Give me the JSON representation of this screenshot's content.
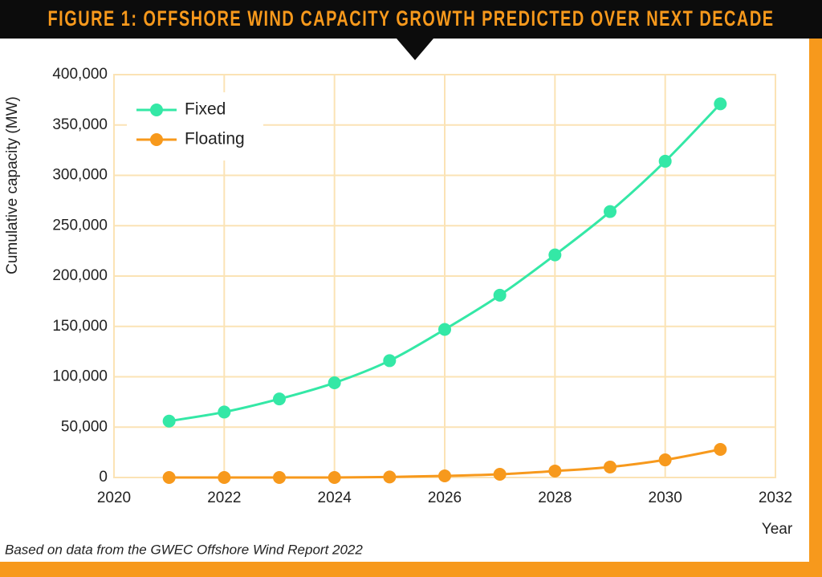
{
  "chart_data": {
    "type": "line",
    "title": "FIGURE 1: OFFSHORE WIND CAPACITY GROWTH PREDICTED OVER NEXT DECADE",
    "x_label": "Year",
    "y_label": "Cumulative capacity (MW)",
    "note": "Based on data from the GWEC Offshore Wind Report 2022",
    "x": [
      2021,
      2022,
      2023,
      2024,
      2025,
      2026,
      2027,
      2028,
      2029,
      2030,
      2031
    ],
    "series": [
      {
        "name": "Fixed",
        "color": "#34e8a6",
        "values": [
          56000,
          65000,
          78000,
          94000,
          116000,
          147000,
          181000,
          221000,
          264000,
          314000,
          371000
        ]
      },
      {
        "name": "Floating",
        "color": "#f7991c",
        "values": [
          0,
          0,
          0,
          0,
          500,
          1600,
          3200,
          6400,
          10400,
          17500,
          27900
        ]
      }
    ],
    "xlim": [
      2020,
      2032
    ],
    "xticks": [
      2020,
      2022,
      2024,
      2026,
      2028,
      2030,
      2032
    ],
    "ylim": [
      0,
      400000
    ],
    "yticks": [
      0,
      {
        "value": 50000,
        "label": "50,000"
      },
      {
        "value": 100000,
        "label": "100,000"
      },
      {
        "value": 150000,
        "label": "150,000"
      },
      {
        "value": 200000,
        "label": "200,000"
      },
      {
        "value": 250000,
        "label": "250,000"
      },
      {
        "value": 300000,
        "label": "300,000"
      },
      {
        "value": 350000,
        "label": "350,000"
      },
      {
        "value": 400000,
        "label": "400,000"
      }
    ],
    "grid": true,
    "legend": "upper left"
  }
}
